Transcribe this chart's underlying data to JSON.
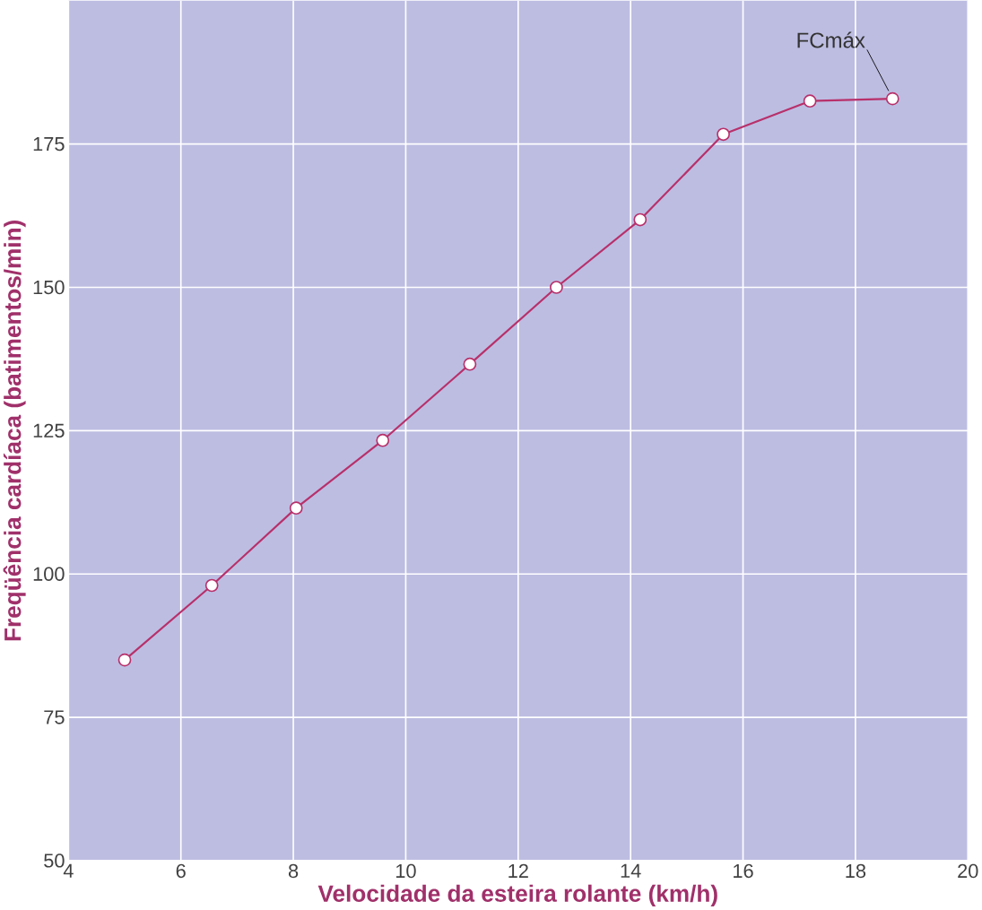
{
  "chart_data": {
    "type": "line",
    "xlabel": "Velocidade da esteira rolante (km/h)",
    "ylabel": "Freqüência cardíaca (batimentos/min)",
    "x": [
      5,
      6.55,
      8.05,
      9.59,
      11.14,
      12.68,
      14.17,
      15.65,
      17.19,
      18.66
    ],
    "series": [
      {
        "color": "#b8306a",
        "values": [
          85,
          98,
          111.5,
          123.3,
          136.6,
          150,
          161.8,
          176.7,
          182.5,
          182.9
        ]
      }
    ],
    "xlim": [
      4,
      20
    ],
    "ylim": [
      50,
      200
    ],
    "xticks": [
      4,
      6,
      8,
      10,
      12,
      14,
      16,
      18,
      20
    ],
    "yticks": [
      50,
      75,
      100,
      125,
      150,
      175
    ],
    "grid": true,
    "marker": "circle",
    "line_style": "solid",
    "annotations": [
      {
        "text": "FCmáx",
        "x": 18.66,
        "y": 182.9
      }
    ]
  }
}
